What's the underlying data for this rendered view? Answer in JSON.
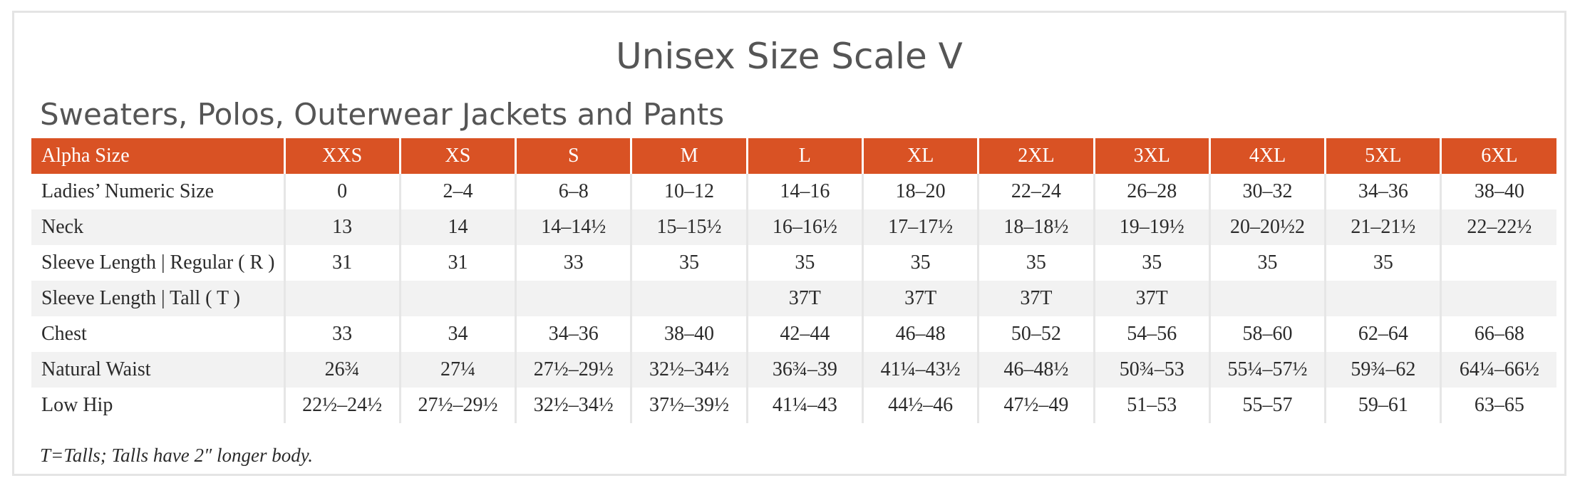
{
  "title": "Unisex Size Scale V",
  "subtitle": "Sweaters, Polos, Outerwear Jackets and Pants",
  "colors": {
    "header_bg": "#d95224",
    "header_text": "#ffffff",
    "stripe": "#f2f2f2",
    "heading": "#555555"
  },
  "table": {
    "header": [
      "Alpha Size",
      "XXS",
      "XS",
      "S",
      "M",
      "L",
      "XL",
      "2XL",
      "3XL",
      "4XL",
      "5XL",
      "6XL"
    ],
    "rows": [
      [
        "Ladies’ Numeric Size",
        "0",
        "2–4",
        "6–8",
        "10–12",
        "14–16",
        "18–20",
        "22–24",
        "26–28",
        "30–32",
        "34–36",
        "38–40"
      ],
      [
        "Neck",
        "13",
        "14",
        "14–14½",
        "15–15½",
        "16–16½",
        "17–17½",
        "18–18½",
        "19–19½",
        "20–20½2",
        "21–21½",
        "22–22½"
      ],
      [
        "Sleeve Length | Regular ( R )",
        "31",
        "31",
        "33",
        "35",
        "35",
        "35",
        "35",
        "35",
        "35",
        "35",
        ""
      ],
      [
        "Sleeve Length | Tall ( T )",
        "",
        "",
        "",
        "",
        "37T",
        "37T",
        "37T",
        "37T",
        "",
        "",
        ""
      ],
      [
        "Chest",
        "33",
        "34",
        "34–36",
        "38–40",
        "42–44",
        "46–48",
        "50–52",
        "54–56",
        "58–60",
        "62–64",
        "66–68"
      ],
      [
        "Natural Waist",
        "26¾",
        "27¼",
        "27½–29½",
        "32½–34½",
        "36¾–39",
        "41¼–43½",
        "46–48½",
        "50¾–53",
        "55¼–57½",
        "59¾–62",
        "64¼–66½"
      ],
      [
        "Low Hip",
        "22½–24½",
        "27½–29½",
        "32½–34½",
        "37½–39½",
        "41¼–43",
        "44½–46",
        "47½–49",
        "51–53",
        "55–57",
        "59–61",
        "63–65"
      ]
    ]
  },
  "note": "T=Talls; Talls have 2″ longer body."
}
